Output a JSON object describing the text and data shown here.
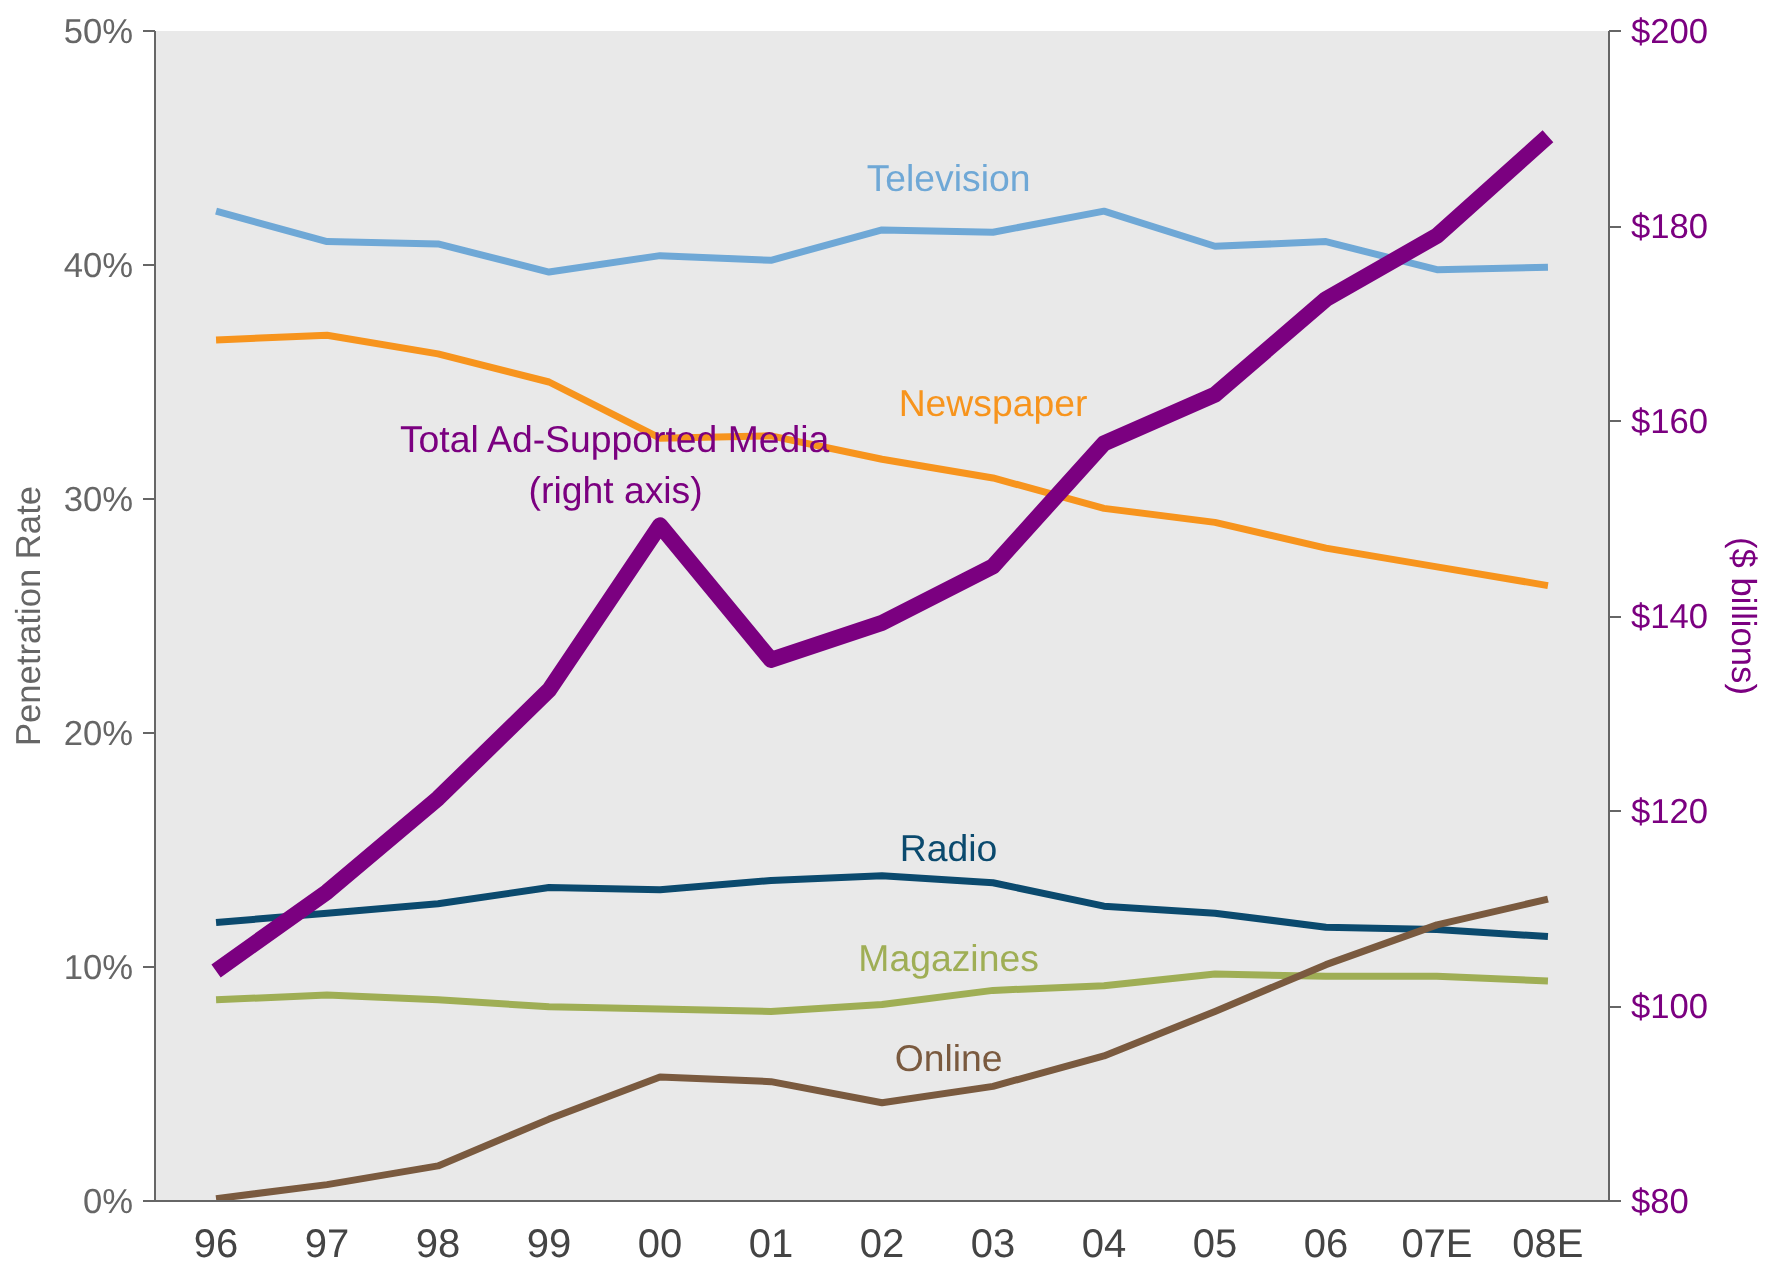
{
  "chart_data": {
    "type": "line",
    "ylabel": "Penetration Rate",
    "y2label": "($ billions)",
    "categories": [
      "96",
      "97",
      "98",
      "99",
      "00",
      "01",
      "02",
      "03",
      "04",
      "05",
      "06",
      "07E",
      "08E"
    ],
    "series": [
      {
        "name": "Television",
        "color": "#6fa8d6",
        "values": [
          42.3,
          41.0,
          40.9,
          39.7,
          40.4,
          40.2,
          41.5,
          41.4,
          42.3,
          40.8,
          41.0,
          39.8,
          39.9
        ]
      },
      {
        "name": "Newspaper",
        "color": "#f7941d",
        "values": [
          36.8,
          37.0,
          36.2,
          35.0,
          32.6,
          32.7,
          31.7,
          30.9,
          29.6,
          29.0,
          27.9,
          27.1,
          26.3
        ]
      },
      {
        "name": "Radio",
        "color": "#0b4a6e",
        "values": [
          11.9,
          12.3,
          12.7,
          13.4,
          13.3,
          13.7,
          13.9,
          13.6,
          12.6,
          12.3,
          11.7,
          11.6,
          11.3
        ]
      },
      {
        "name": "Magazines",
        "color": "#9fae55",
        "values": [
          8.6,
          8.8,
          8.6,
          8.3,
          8.2,
          8.1,
          8.4,
          9.0,
          9.2,
          9.7,
          9.6,
          9.6,
          9.4
        ]
      },
      {
        "name": "Online",
        "color": "#7a5a3f",
        "values": [
          0.1,
          0.7,
          1.5,
          3.5,
          5.3,
          5.1,
          4.2,
          4.9,
          6.2,
          8.1,
          10.1,
          11.8,
          12.9
        ]
      },
      {
        "name": "Total Ad-Supported Media\n(right axis)",
        "color": "#7b0080",
        "axis": "y2",
        "values": [
          103.6,
          111.7,
          121.3,
          132.4,
          149.3,
          135.5,
          139.3,
          145.1,
          157.7,
          162.7,
          172.5,
          179.0,
          189.2
        ]
      }
    ],
    "ylim": [
      0,
      50
    ],
    "yticks": [
      {
        "value": 0,
        "label": "0%"
      },
      {
        "value": 10,
        "label": "10%"
      },
      {
        "value": 20,
        "label": "20%"
      },
      {
        "value": 30,
        "label": "30%"
      },
      {
        "value": 40,
        "label": "40%"
      },
      {
        "value": 50,
        "label": "50%"
      }
    ],
    "y2lim": [
      80,
      200
    ],
    "y2ticks": [
      {
        "value": 80,
        "label": "$80"
      },
      {
        "value": 100,
        "label": "$100"
      },
      {
        "value": 120,
        "label": "$120"
      },
      {
        "value": 140,
        "label": "$140"
      },
      {
        "value": 160,
        "label": "$160"
      },
      {
        "value": 180,
        "label": "$180"
      },
      {
        "value": 200,
        "label": "$200"
      }
    ],
    "legend": false
  }
}
